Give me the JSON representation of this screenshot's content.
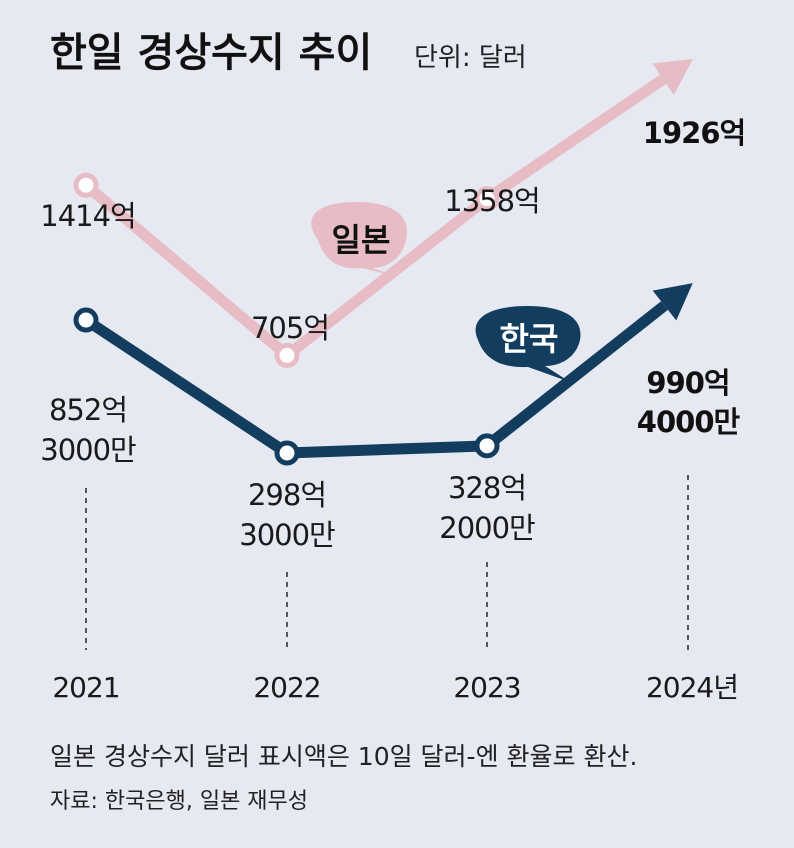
{
  "title": "한일 경상수지 추이",
  "unit": "단위: 달러",
  "note": "일본 경상수지 달러 표시액은 10일 달러-엔 환율로 환산.",
  "source": "자료: 한국은행, 일본 재무성",
  "colors": {
    "japan": "#e8bcc4",
    "korea": "#123d5e",
    "background": "#e6e8f2"
  },
  "chart_data": {
    "type": "line",
    "categories": [
      "2021",
      "2022",
      "2023",
      "2024년"
    ],
    "series": [
      {
        "name": "일본",
        "values": [
          141400000000,
          70500000000,
          135800000000,
          192600000000
        ],
        "labels": [
          "1414억",
          "705억",
          "1358억",
          "1926억"
        ]
      },
      {
        "name": "한국",
        "values": [
          85230000000,
          29830000000,
          32820000000,
          99040000000
        ],
        "labels": [
          [
            "852억",
            "3000만"
          ],
          [
            "298억",
            "3000만"
          ],
          [
            "328억",
            "2000만"
          ],
          [
            "990억",
            "4000만"
          ]
        ]
      }
    ],
    "last_point_style": "arrow"
  }
}
